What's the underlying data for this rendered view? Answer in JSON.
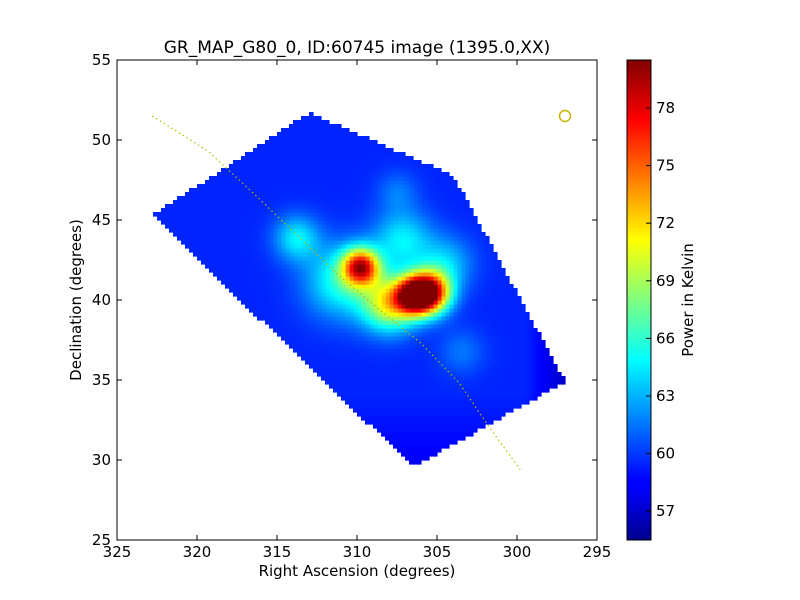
{
  "chart_data": {
    "type": "heatmap",
    "title": "GR_MAP_G80_0, ID:60745 image (1395.0,XX)",
    "xlabel": "Right Ascension (degrees)",
    "ylabel": "Declination (degrees)",
    "xlim": [
      325,
      295
    ],
    "ylim": [
      25,
      55
    ],
    "x_ticks": [
      325,
      320,
      315,
      310,
      305,
      300,
      295
    ],
    "y_ticks": [
      25,
      30,
      35,
      40,
      45,
      50,
      55
    ],
    "colorbar": {
      "label": "Power in Kelvin",
      "range": [
        55.5,
        80.5
      ],
      "ticks": [
        57,
        60,
        63,
        66,
        69,
        72,
        75,
        78
      ],
      "colormap": "jet"
    },
    "map_outline": [
      [
        322.8,
        45.3
      ],
      [
        313,
        51.7
      ],
      [
        304,
        47.8
      ],
      [
        297,
        34.9
      ],
      [
        306.5,
        29.6
      ],
      [
        322.8,
        45.3
      ]
    ],
    "background_level": 59.5,
    "hotspots": [
      {
        "ra": 305.5,
        "dec": 40.5,
        "peak": 78.5,
        "sigma": 0.9
      },
      {
        "ra": 306.5,
        "dec": 40.3,
        "peak": 76.5,
        "sigma": 0.8
      },
      {
        "ra": 309.8,
        "dec": 42.1,
        "peak": 76.0,
        "sigma": 0.8
      },
      {
        "ra": 308.0,
        "dec": 39.8,
        "peak": 70.5,
        "sigma": 1.2
      },
      {
        "ra": 307.2,
        "dec": 43.8,
        "peak": 64.5,
        "sigma": 1.3
      },
      {
        "ra": 313.8,
        "dec": 43.9,
        "peak": 64.5,
        "sigma": 1.0
      },
      {
        "ra": 311.0,
        "dec": 41.2,
        "peak": 65.5,
        "sigma": 1.6
      },
      {
        "ra": 304.5,
        "dec": 42.3,
        "peak": 63.5,
        "sigma": 1.2
      },
      {
        "ra": 307.5,
        "dec": 46.8,
        "peak": 61.5,
        "sigma": 0.9
      },
      {
        "ra": 303.5,
        "dec": 36.8,
        "peak": 61.5,
        "sigma": 1.0
      }
    ],
    "galactic_plane": [
      [
        322.8,
        51.5
      ],
      [
        319.3,
        49.3
      ],
      [
        316.4,
        46.6
      ],
      [
        313.7,
        44.0
      ],
      [
        311.2,
        41.6
      ],
      [
        308.6,
        39.4
      ],
      [
        306.0,
        37.3
      ],
      [
        303.6,
        34.8
      ],
      [
        301.7,
        32.0
      ],
      [
        299.8,
        29.4
      ]
    ],
    "source_marker": {
      "ra": 297.0,
      "dec": 51.5,
      "color": "#c8b400"
    },
    "dotted_line_color": "#b8b800",
    "grid": false
  }
}
